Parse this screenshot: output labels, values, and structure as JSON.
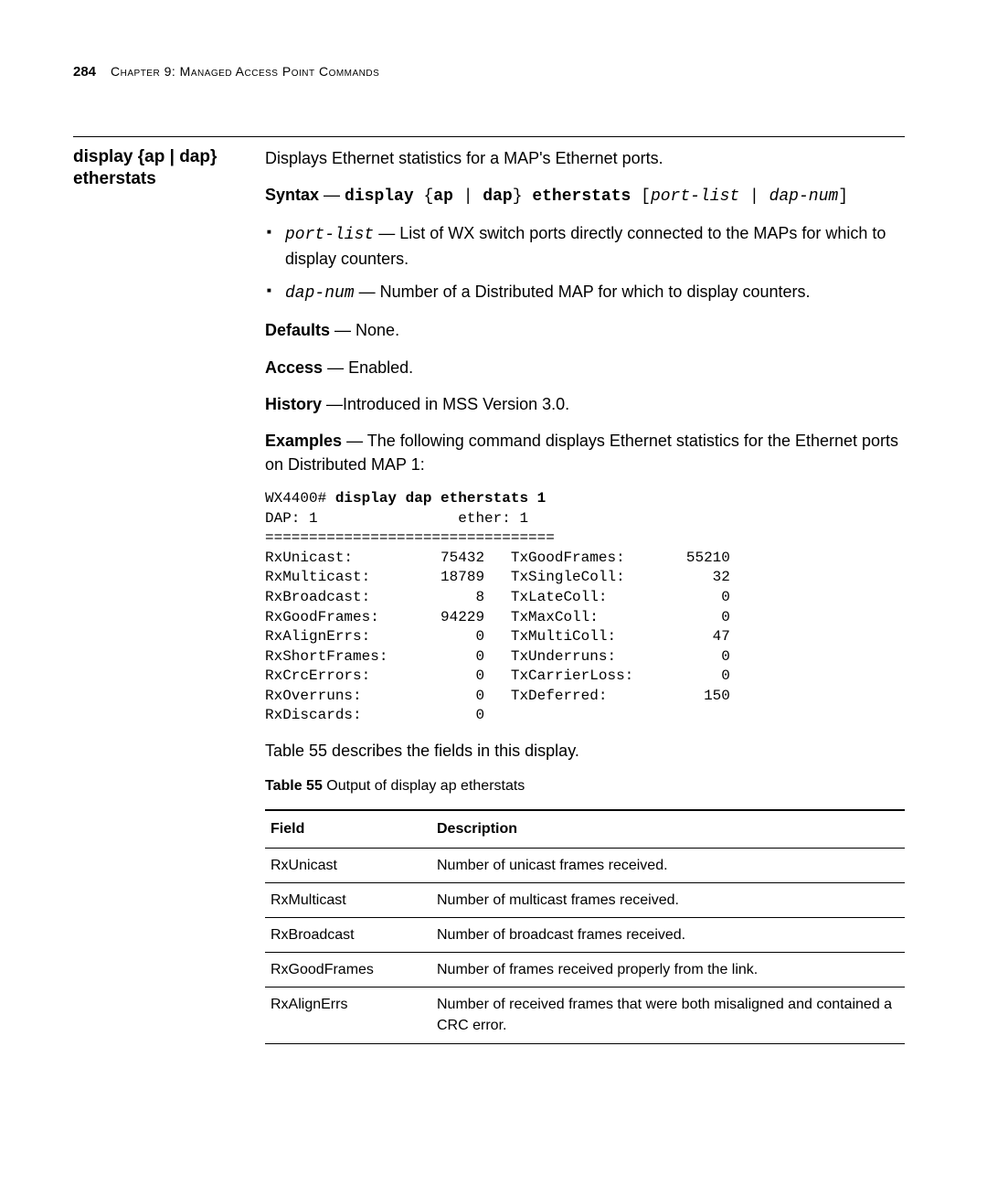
{
  "header": {
    "page_number": "284",
    "chapter_label": "Chapter 9: Managed Access Point Commands"
  },
  "command_heading": "display {ap | dap} etherstats",
  "intro": "Displays Ethernet statistics for a MAP's Ethernet ports.",
  "syntax": {
    "label": "Syntax",
    "dash": " — ",
    "cmd_prefix": "display ",
    "brace_open": "{",
    "ap": "ap",
    "pipe": " | ",
    "dap": "dap",
    "brace_close": "}",
    "etherstats": " etherstats ",
    "bracket_open": "[",
    "portlist": "port-list",
    "pipe2": " | ",
    "dapnum": "dap-num",
    "bracket_close": "]"
  },
  "params": [
    {
      "name": "port-list",
      "dash": " — ",
      "desc": "List of WX switch ports directly connected to the MAPs for which to display counters."
    },
    {
      "name": "dap-num",
      "dash": " — ",
      "desc": "Number of a Distributed MAP for which to display counters."
    }
  ],
  "defaults": {
    "label": "Defaults",
    "dash": " — ",
    "value": "None."
  },
  "access": {
    "label": "Access",
    "dash": " — ",
    "value": "Enabled."
  },
  "history": {
    "label": "History",
    "dash": " —",
    "value": "Introduced in MSS Version 3.0."
  },
  "examples_para": {
    "label": "Examples",
    "dash": " — ",
    "text": "The following command displays Ethernet statistics for the Ethernet ports on Distributed MAP 1:"
  },
  "codeblock": {
    "line1_prompt": "WX4400# ",
    "line1_cmd": "display dap etherstats 1",
    "body": "DAP: 1                ether: 1\n=================================\nRxUnicast:          75432   TxGoodFrames:       55210\nRxMulticast:        18789   TxSingleColl:          32\nRxBroadcast:            8   TxLateColl:             0\nRxGoodFrames:       94229   TxMaxColl:              0\nRxAlignErrs:            0   TxMultiColl:           47\nRxShortFrames:          0   TxUnderruns:            0\nRxCrcErrors:            0   TxCarrierLoss:          0\nRxOverruns:             0   TxDeferred:           150\nRxDiscards:             0"
  },
  "table_ref_sentence": "Table 55 describes the fields in this display.",
  "table_caption": {
    "label": "Table 55",
    "text": "   Output of display ap etherstats"
  },
  "table": {
    "columns": [
      "Field",
      "Description"
    ],
    "rows": [
      [
        "RxUnicast",
        "Number of unicast frames received."
      ],
      [
        "RxMulticast",
        "Number of multicast frames received."
      ],
      [
        "RxBroadcast",
        "Number of broadcast frames received."
      ],
      [
        "RxGoodFrames",
        "Number of frames received properly from the link."
      ],
      [
        "RxAlignErrs",
        "Number of received frames that were both misaligned and contained a CRC error."
      ]
    ]
  }
}
